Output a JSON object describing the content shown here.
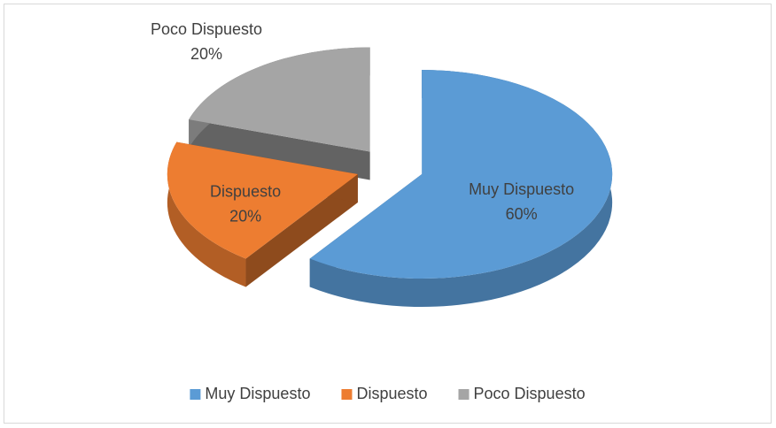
{
  "chart_data": {
    "type": "pie",
    "three_d": true,
    "exploded": true,
    "categories": [
      "Muy Dispuesto",
      "Dispuesto",
      "Poco Dispuesto"
    ],
    "values": [
      60,
      20,
      20
    ],
    "value_labels": [
      "60%",
      "20%",
      "20%"
    ],
    "colors": [
      "#5b9bd5",
      "#ed7d31",
      "#a5a5a5"
    ],
    "legend": "bottom"
  }
}
